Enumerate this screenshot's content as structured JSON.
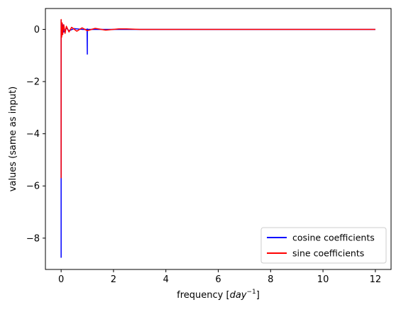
{
  "chart_data": {
    "type": "line",
    "xlabel_prefix": "frequency [",
    "xlabel_base": "day",
    "xlabel_sup": "−1",
    "xlabel_suffix": "]",
    "ylabel": "values (same as input)",
    "xlim": [
      -0.6,
      12.6
    ],
    "ylim": [
      -9.2,
      0.8
    ],
    "xticks": [
      0,
      2,
      4,
      6,
      8,
      10,
      12
    ],
    "xtick_labels": [
      "0",
      "2",
      "4",
      "6",
      "8",
      "10",
      "12"
    ],
    "yticks": [
      0,
      -2,
      -4,
      -6,
      -8
    ],
    "ytick_labels": [
      "0",
      "−2",
      "−4",
      "−6",
      "−8"
    ],
    "grid": false,
    "legend_position": "lower-right",
    "series": [
      {
        "name": "cosine coefficients",
        "color": "#0000ff",
        "x": [
          0,
          0,
          0.02,
          0.05,
          0.1,
          0.2,
          0.3,
          0.5,
          0.8,
          0.99,
          1.0,
          1.0,
          1.01,
          1.2,
          1.5,
          2.0,
          3.0,
          6.0,
          9.0,
          12.0
        ],
        "y": [
          -8.75,
          0.35,
          -0.15,
          0.2,
          -0.1,
          0.05,
          -0.05,
          0.03,
          0.0,
          0.0,
          -0.95,
          0.02,
          0.0,
          0.0,
          0.0,
          0.0,
          0.0,
          0.0,
          0.0,
          0.0
        ]
      },
      {
        "name": "sine coefficients",
        "color": "#ff0000",
        "x": [
          0,
          0,
          0.02,
          0.04,
          0.06,
          0.1,
          0.15,
          0.2,
          0.3,
          0.4,
          0.6,
          0.8,
          1.0,
          1.3,
          1.7,
          2.2,
          2.5,
          3.0,
          6.0,
          9.0,
          12.0
        ],
        "y": [
          -5.7,
          0.38,
          -0.3,
          0.25,
          -0.2,
          0.18,
          -0.15,
          0.12,
          -0.1,
          0.08,
          -0.07,
          0.06,
          -0.05,
          0.04,
          -0.03,
          0.02,
          0.02,
          0.0,
          0.0,
          0.0,
          0.0
        ]
      }
    ]
  }
}
